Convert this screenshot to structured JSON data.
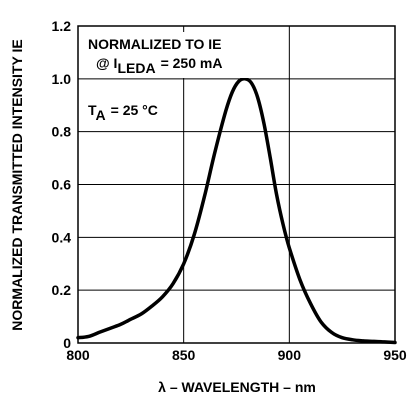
{
  "chart_data": {
    "type": "line",
    "title": "",
    "xlabel": "λ – WAVELENGTH – nm",
    "ylabel": "NORMALIZED TRANSMITTED INTENSITY IE",
    "xlim": [
      800,
      950
    ],
    "ylim": [
      0,
      1.2
    ],
    "x_ticks": [
      "800",
      "850",
      "900",
      "950"
    ],
    "y_ticks": [
      "0",
      "0.2",
      "0.4",
      "0.6",
      "0.8",
      "1.0",
      "1.2"
    ],
    "grid": true,
    "annotations": {
      "normalized_to": "NORMALIZED TO IE",
      "current_prefix": "@ I",
      "current_sub": "LEDA",
      "current_value": "= 250 mA",
      "temp_prefix": "T",
      "temp_sub": "A",
      "temp_value": "= 25 °C"
    },
    "series": [
      {
        "color": "#000000",
        "x": [
          800,
          805,
          810,
          815,
          820,
          825,
          830,
          835,
          840,
          845,
          850,
          855,
          860,
          865,
          870,
          873,
          876,
          879,
          882,
          885,
          888,
          891,
          894,
          897,
          900,
          905,
          910,
          915,
          920,
          925,
          930,
          935,
          940,
          945,
          950
        ],
        "y": [
          0.02,
          0.025,
          0.04,
          0.055,
          0.07,
          0.09,
          0.11,
          0.14,
          0.175,
          0.225,
          0.3,
          0.41,
          0.56,
          0.73,
          0.88,
          0.95,
          0.99,
          1.0,
          0.985,
          0.93,
          0.83,
          0.7,
          0.56,
          0.45,
          0.36,
          0.24,
          0.15,
          0.08,
          0.04,
          0.02,
          0.012,
          0.008,
          0.006,
          0.004,
          0.002
        ]
      }
    ]
  }
}
